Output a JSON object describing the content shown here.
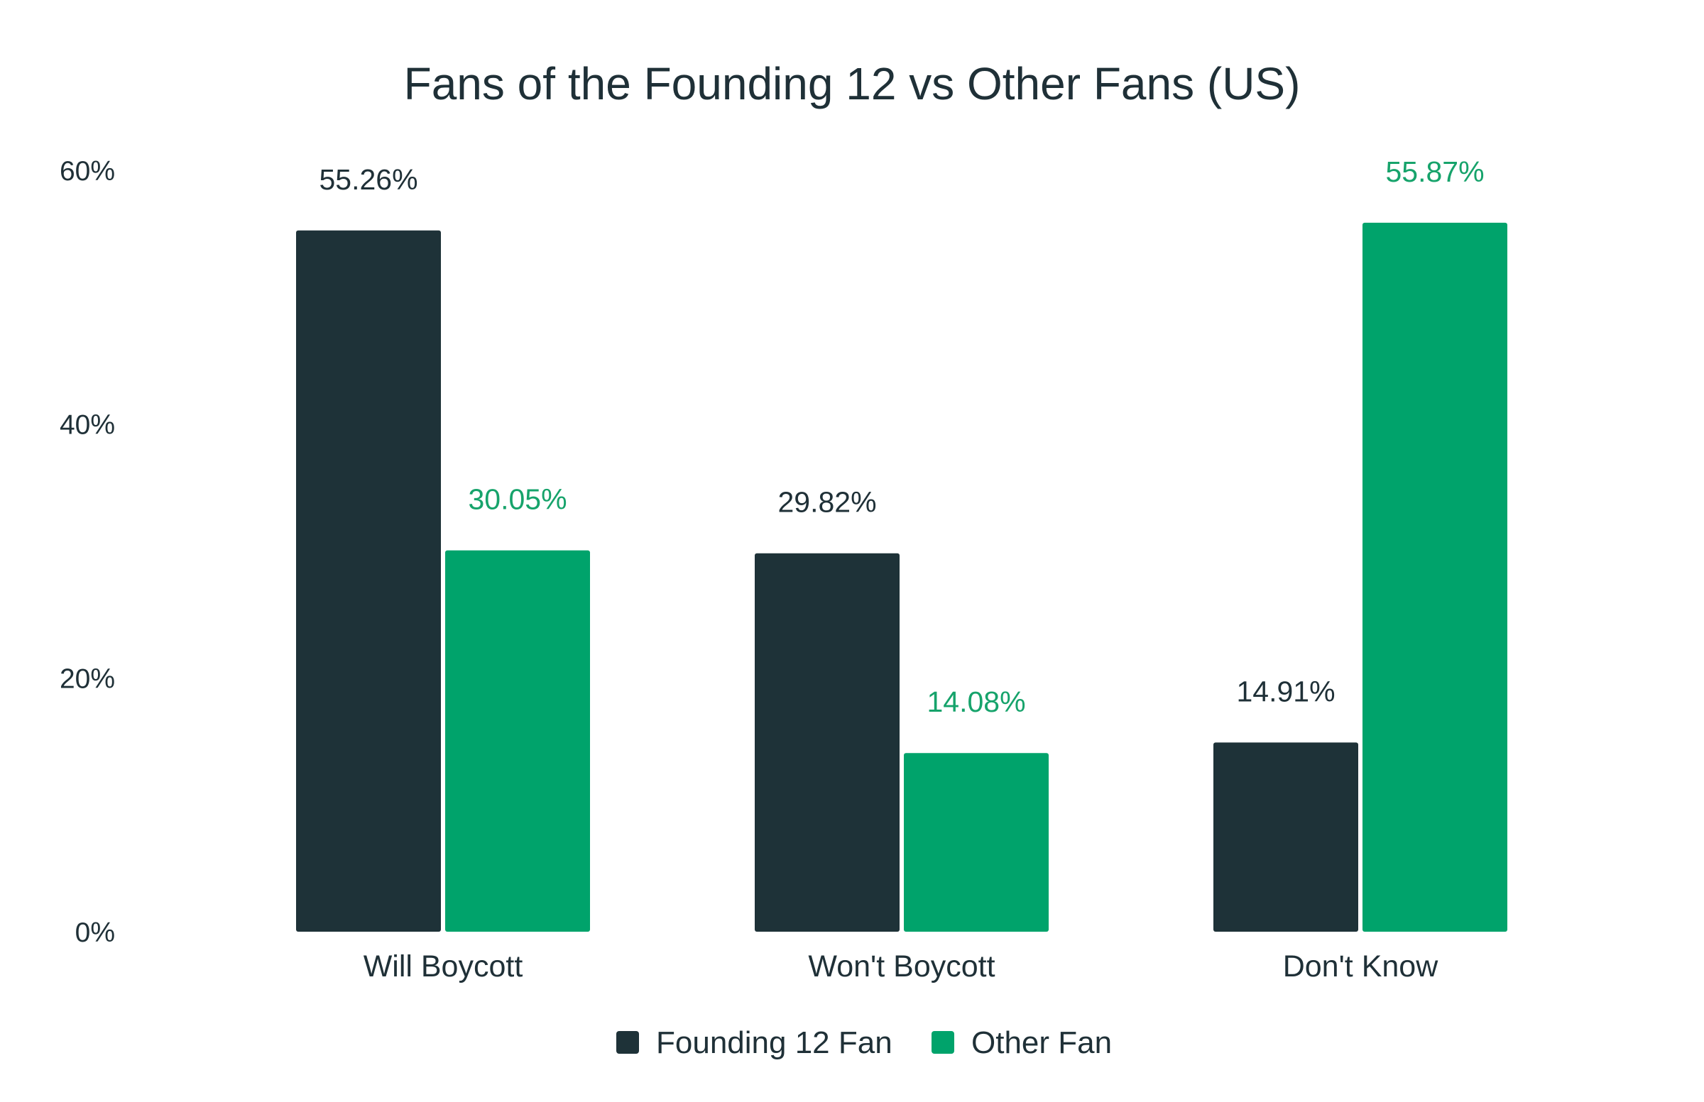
{
  "chart_data": {
    "type": "bar",
    "title": "Fans of the Founding 12 vs Other Fans (US)",
    "categories": [
      "Will Boycott",
      "Won't Boycott",
      "Don't Know"
    ],
    "series": [
      {
        "name": "Founding 12 Fan",
        "values": [
          55.26,
          29.82,
          14.91
        ],
        "labels": [
          "55.26%",
          "29.82%",
          "14.91%"
        ],
        "color": "#1e3238",
        "label_color": "#1f3037"
      },
      {
        "name": "Other Fan",
        "values": [
          30.05,
          14.08,
          55.87
        ],
        "labels": [
          "30.05%",
          "14.08%",
          "55.87%"
        ],
        "color": "#00a36b",
        "label_color": "#16a36b"
      }
    ],
    "ylim": [
      0,
      60
    ],
    "yticks": [
      {
        "value": 0,
        "label": "0%"
      },
      {
        "value": 20,
        "label": "20%"
      },
      {
        "value": 40,
        "label": "40%"
      },
      {
        "value": 60,
        "label": "60%"
      }
    ],
    "grid": false,
    "legend_position": "bottom"
  }
}
